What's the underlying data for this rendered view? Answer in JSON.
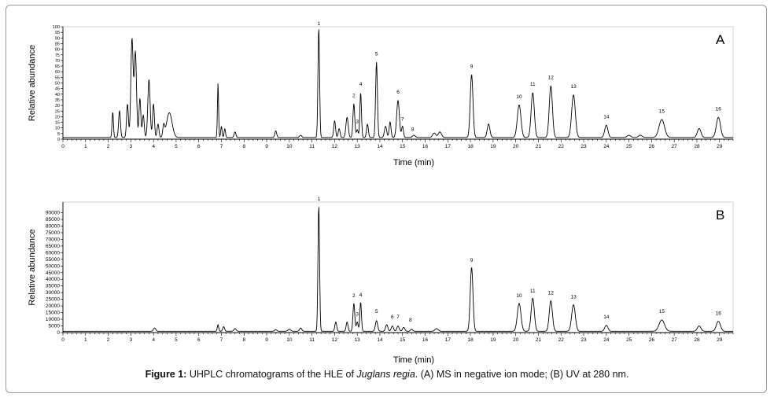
{
  "caption": {
    "prefix": "Figure 1:",
    "text_before": " UHPLC chromatograms of the HLE of ",
    "species": "Juglans regia",
    "text_after": ". (A) MS in negative ion mode; (B) UV at 280 nm."
  },
  "chart_data": [
    {
      "type": "line",
      "panel_label": "A",
      "xlabel": "Time (min)",
      "ylabel": "Relative abundance",
      "xlim": [
        0,
        29.6
      ],
      "ylim": [
        0,
        100
      ],
      "xticks": [
        0,
        1,
        2,
        3,
        4,
        5,
        6,
        7,
        8,
        9,
        10,
        11,
        12,
        13,
        14,
        15,
        16,
        17,
        18,
        19,
        20,
        21,
        22,
        23,
        24,
        25,
        26,
        27,
        28,
        29
      ],
      "yticks": [
        0,
        5,
        10,
        15,
        20,
        25,
        30,
        35,
        40,
        45,
        50,
        55,
        60,
        65,
        70,
        75,
        80,
        85,
        90,
        95,
        100
      ],
      "baseline": 1.5,
      "peaks": [
        {
          "t": 2.2,
          "h": 23,
          "w": 0.03
        },
        {
          "t": 2.5,
          "h": 24,
          "w": 0.04
        },
        {
          "t": 2.85,
          "h": 30,
          "w": 0.04
        },
        {
          "t": 3.05,
          "h": 88,
          "w": 0.05
        },
        {
          "t": 3.2,
          "h": 76,
          "w": 0.05
        },
        {
          "t": 3.4,
          "h": 35,
          "w": 0.04
        },
        {
          "t": 3.55,
          "h": 20,
          "w": 0.04
        },
        {
          "t": 3.8,
          "h": 52,
          "w": 0.05
        },
        {
          "t": 4.0,
          "h": 30,
          "w": 0.04
        },
        {
          "t": 4.2,
          "h": 12,
          "w": 0.04
        },
        {
          "t": 4.45,
          "h": 10,
          "w": 0.04
        },
        {
          "t": 4.7,
          "h": 22,
          "w": 0.12
        },
        {
          "t": 6.85,
          "h": 48,
          "w": 0.025
        },
        {
          "t": 7.0,
          "h": 10,
          "w": 0.03
        },
        {
          "t": 7.15,
          "h": 8,
          "w": 0.03
        },
        {
          "t": 7.6,
          "h": 5,
          "w": 0.04
        },
        {
          "t": 9.4,
          "h": 6,
          "w": 0.04
        },
        {
          "t": 10.5,
          "h": 2,
          "w": 0.05
        },
        {
          "t": 11.3,
          "h": 98,
          "w": 0.035
        },
        {
          "t": 12.0,
          "h": 15,
          "w": 0.04
        },
        {
          "t": 12.2,
          "h": 8,
          "w": 0.04
        },
        {
          "t": 12.55,
          "h": 18,
          "w": 0.05
        },
        {
          "t": 12.85,
          "h": 30,
          "w": 0.04
        },
        {
          "t": 13.0,
          "h": 7,
          "w": 0.04
        },
        {
          "t": 13.15,
          "h": 40,
          "w": 0.035
        },
        {
          "t": 13.45,
          "h": 12,
          "w": 0.04
        },
        {
          "t": 13.85,
          "h": 67,
          "w": 0.04
        },
        {
          "t": 14.25,
          "h": 10,
          "w": 0.05
        },
        {
          "t": 14.45,
          "h": 14,
          "w": 0.04
        },
        {
          "t": 14.8,
          "h": 33,
          "w": 0.06
        },
        {
          "t": 15.0,
          "h": 10,
          "w": 0.04
        },
        {
          "t": 15.5,
          "h": 2,
          "w": 0.06
        },
        {
          "t": 16.4,
          "h": 4,
          "w": 0.07
        },
        {
          "t": 16.65,
          "h": 5,
          "w": 0.07
        },
        {
          "t": 18.05,
          "h": 56,
          "w": 0.06
        },
        {
          "t": 18.8,
          "h": 12,
          "w": 0.06
        },
        {
          "t": 20.15,
          "h": 29,
          "w": 0.08
        },
        {
          "t": 20.75,
          "h": 40,
          "w": 0.07
        },
        {
          "t": 21.55,
          "h": 46,
          "w": 0.07
        },
        {
          "t": 22.55,
          "h": 38,
          "w": 0.08
        },
        {
          "t": 24.0,
          "h": 11,
          "w": 0.07
        },
        {
          "t": 25.0,
          "h": 2,
          "w": 0.08
        },
        {
          "t": 25.5,
          "h": 2,
          "w": 0.08
        },
        {
          "t": 26.45,
          "h": 16,
          "w": 0.12
        },
        {
          "t": 28.1,
          "h": 8,
          "w": 0.08
        },
        {
          "t": 28.95,
          "h": 18,
          "w": 0.09
        }
      ],
      "peak_labels": [
        {
          "label": "1",
          "t": 11.3,
          "h": 100
        },
        {
          "label": "2",
          "t": 12.85,
          "h": 36
        },
        {
          "label": "3",
          "t": 13.0,
          "h": 13
        },
        {
          "label": "4",
          "t": 13.15,
          "h": 46
        },
        {
          "label": "5",
          "t": 13.85,
          "h": 73
        },
        {
          "label": "6",
          "t": 14.8,
          "h": 39
        },
        {
          "label": "7",
          "t": 15.0,
          "h": 15
        },
        {
          "label": "8",
          "t": 15.45,
          "h": 6
        },
        {
          "label": "9",
          "t": 18.05,
          "h": 62
        },
        {
          "label": "10",
          "t": 20.15,
          "h": 35
        },
        {
          "label": "11",
          "t": 20.75,
          "h": 46
        },
        {
          "label": "12",
          "t": 21.55,
          "h": 52
        },
        {
          "label": "13",
          "t": 22.55,
          "h": 44
        },
        {
          "label": "14",
          "t": 24.0,
          "h": 17
        },
        {
          "label": "15",
          "t": 26.45,
          "h": 22
        },
        {
          "label": "16",
          "t": 28.95,
          "h": 24
        }
      ]
    },
    {
      "type": "line",
      "panel_label": "B",
      "xlabel": "Time (min)",
      "ylabel": "Relative abundance",
      "xlim": [
        0,
        29.6
      ],
      "ylim": [
        0,
        98000
      ],
      "xticks": [
        0,
        1,
        2,
        3,
        4,
        5,
        6,
        7,
        8,
        9,
        10,
        11,
        12,
        13,
        14,
        15,
        16,
        17,
        18,
        19,
        20,
        21,
        22,
        23,
        24,
        25,
        26,
        27,
        28,
        29
      ],
      "yticks": [
        0,
        5000,
        10000,
        15000,
        20000,
        25000,
        30000,
        35000,
        40000,
        45000,
        50000,
        55000,
        60000,
        65000,
        70000,
        75000,
        80000,
        85000,
        90000
      ],
      "baseline": 1000,
      "peaks": [
        {
          "t": 4.05,
          "h": 2500,
          "w": 0.05
        },
        {
          "t": 6.85,
          "h": 5000,
          "w": 0.03
        },
        {
          "t": 7.1,
          "h": 3500,
          "w": 0.04
        },
        {
          "t": 7.6,
          "h": 2000,
          "w": 0.05
        },
        {
          "t": 9.4,
          "h": 1200,
          "w": 0.05
        },
        {
          "t": 10.0,
          "h": 1500,
          "w": 0.06
        },
        {
          "t": 10.5,
          "h": 2500,
          "w": 0.05
        },
        {
          "t": 11.3,
          "h": 95000,
          "w": 0.035
        },
        {
          "t": 12.05,
          "h": 7000,
          "w": 0.04
        },
        {
          "t": 12.55,
          "h": 7000,
          "w": 0.04
        },
        {
          "t": 12.85,
          "h": 21000,
          "w": 0.04
        },
        {
          "t": 13.0,
          "h": 7000,
          "w": 0.04
        },
        {
          "t": 13.15,
          "h": 22000,
          "w": 0.035
        },
        {
          "t": 13.85,
          "h": 8000,
          "w": 0.05
        },
        {
          "t": 14.3,
          "h": 5000,
          "w": 0.05
        },
        {
          "t": 14.55,
          "h": 4000,
          "w": 0.05
        },
        {
          "t": 14.8,
          "h": 4000,
          "w": 0.05
        },
        {
          "t": 15.05,
          "h": 3000,
          "w": 0.05
        },
        {
          "t": 15.4,
          "h": 1500,
          "w": 0.05
        },
        {
          "t": 16.5,
          "h": 2000,
          "w": 0.07
        },
        {
          "t": 18.05,
          "h": 48000,
          "w": 0.06
        },
        {
          "t": 20.15,
          "h": 21000,
          "w": 0.08
        },
        {
          "t": 20.75,
          "h": 25000,
          "w": 0.07
        },
        {
          "t": 21.55,
          "h": 23000,
          "w": 0.07
        },
        {
          "t": 22.55,
          "h": 20000,
          "w": 0.08
        },
        {
          "t": 24.0,
          "h": 4500,
          "w": 0.07
        },
        {
          "t": 26.45,
          "h": 8500,
          "w": 0.12
        },
        {
          "t": 28.1,
          "h": 4000,
          "w": 0.08
        },
        {
          "t": 28.95,
          "h": 7500,
          "w": 0.09
        }
      ],
      "peak_labels": [
        {
          "label": "1",
          "t": 11.3,
          "h": 98000
        },
        {
          "label": "2",
          "t": 12.85,
          "h": 25500
        },
        {
          "label": "3",
          "t": 13.0,
          "h": 11500
        },
        {
          "label": "4",
          "t": 13.15,
          "h": 26000
        },
        {
          "label": "5",
          "t": 13.85,
          "h": 13500
        },
        {
          "label": "6",
          "t": 14.55,
          "h": 9500
        },
        {
          "label": "7",
          "t": 14.8,
          "h": 9500
        },
        {
          "label": "8",
          "t": 15.35,
          "h": 7000
        },
        {
          "label": "9",
          "t": 18.05,
          "h": 52000
        },
        {
          "label": "10",
          "t": 20.15,
          "h": 25500
        },
        {
          "label": "11",
          "t": 20.75,
          "h": 29000
        },
        {
          "label": "12",
          "t": 21.55,
          "h": 27500
        },
        {
          "label": "13",
          "t": 22.55,
          "h": 24500
        },
        {
          "label": "14",
          "t": 24.0,
          "h": 9500
        },
        {
          "label": "15",
          "t": 26.45,
          "h": 13500
        },
        {
          "label": "16",
          "t": 28.95,
          "h": 12000
        }
      ]
    }
  ]
}
